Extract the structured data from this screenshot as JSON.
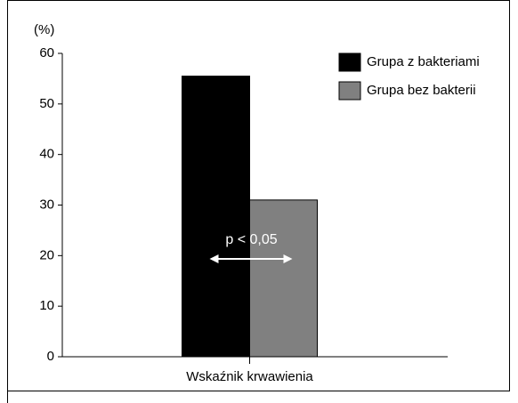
{
  "chart_data": {
    "type": "bar",
    "y_label": "(%)",
    "categories": [
      "Wskaźnik krwawienia"
    ],
    "series": [
      {
        "name": "Grupa z bakteriami",
        "color": "#000000",
        "values": [
          55.5
        ]
      },
      {
        "name": "Grupa bez bakterii",
        "color": "#808080",
        "values": [
          31
        ]
      }
    ],
    "ylim": [
      0,
      60
    ],
    "yticks": [
      0,
      10,
      20,
      30,
      40,
      50,
      60
    ],
    "annotation": "p < 0,05",
    "legend": "upper right"
  }
}
